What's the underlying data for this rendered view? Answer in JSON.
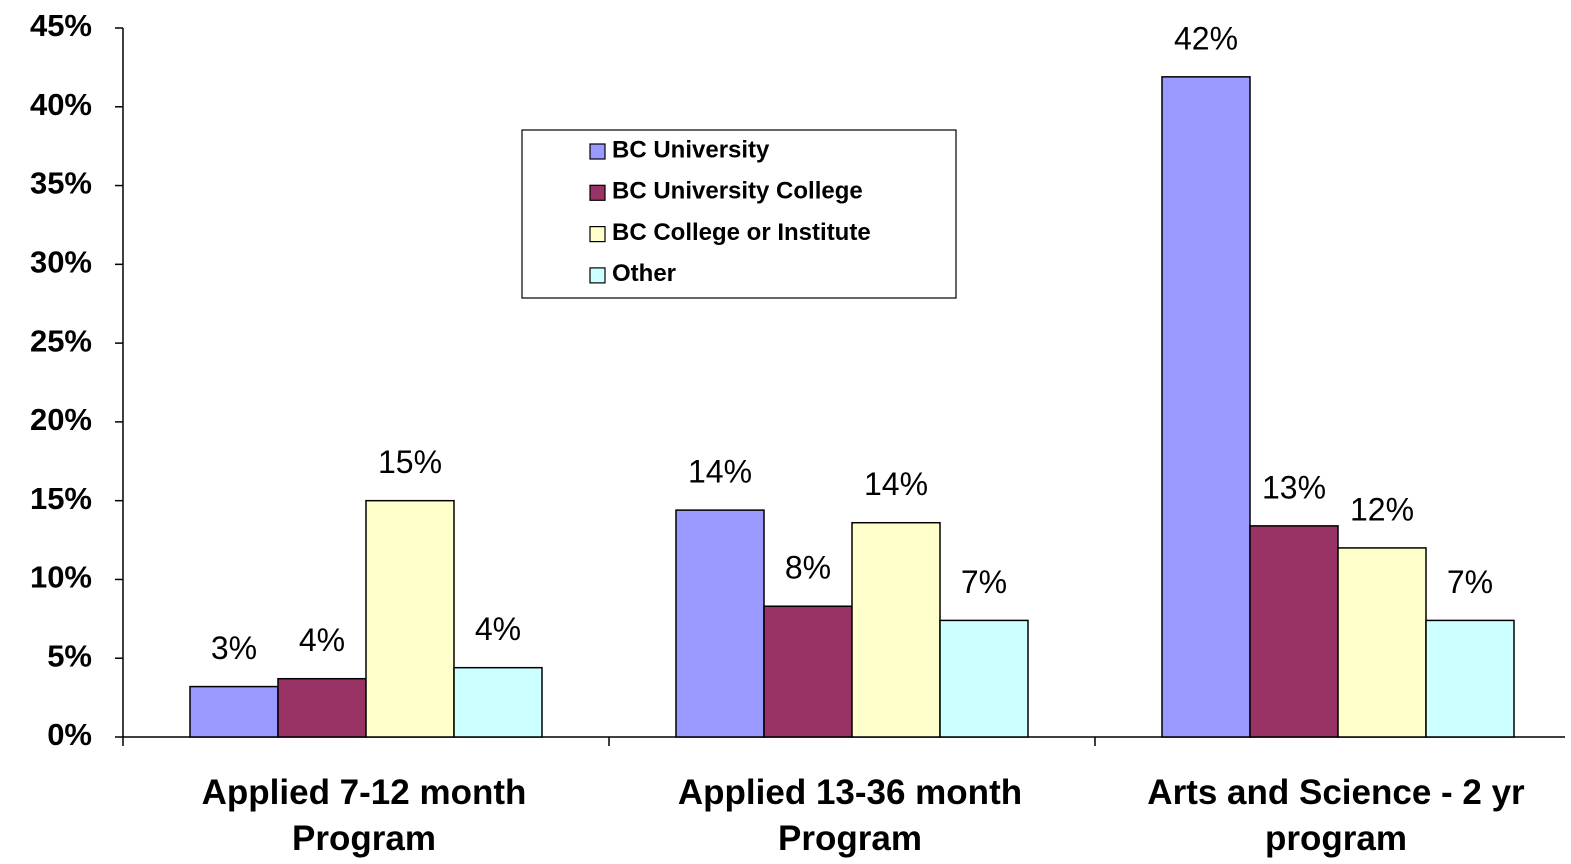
{
  "chart_data": {
    "type": "bar",
    "categories": [
      "Applied 7-12 month Program",
      "Applied 13-36 month Program",
      "Arts and Science - 2 yr program"
    ],
    "series": [
      {
        "name": "BC University",
        "color": "#9999ff",
        "values": [
          3.2,
          14.4,
          41.9
        ],
        "value_labels": [
          "3%",
          "14%",
          "42%"
        ]
      },
      {
        "name": "BC University College",
        "color": "#993366",
        "values": [
          3.7,
          8.3,
          13.4
        ],
        "value_labels": [
          "4%",
          "8%",
          "13%"
        ]
      },
      {
        "name": "BC College or Institute",
        "color": "#ffffcc",
        "values": [
          15.0,
          13.6,
          12.0
        ],
        "value_labels": [
          "15%",
          "14%",
          "12%"
        ]
      },
      {
        "name": "Other",
        "color": "#ccffff",
        "values": [
          4.4,
          7.4,
          7.4
        ],
        "value_labels": [
          "4%",
          "7%",
          "7%"
        ]
      }
    ],
    "ylim": [
      0,
      45
    ],
    "yticks": [
      {
        "value": 0,
        "label": "0%"
      },
      {
        "value": 5,
        "label": "5%"
      },
      {
        "value": 10,
        "label": "10%"
      },
      {
        "value": 15,
        "label": "15%"
      },
      {
        "value": 20,
        "label": "20%"
      },
      {
        "value": 25,
        "label": "25%"
      },
      {
        "value": 30,
        "label": "30%"
      },
      {
        "value": 35,
        "label": "35%"
      },
      {
        "value": 40,
        "label": "40%"
      },
      {
        "value": 45,
        "label": "45%"
      }
    ],
    "grid": false,
    "legend": "top-center"
  }
}
